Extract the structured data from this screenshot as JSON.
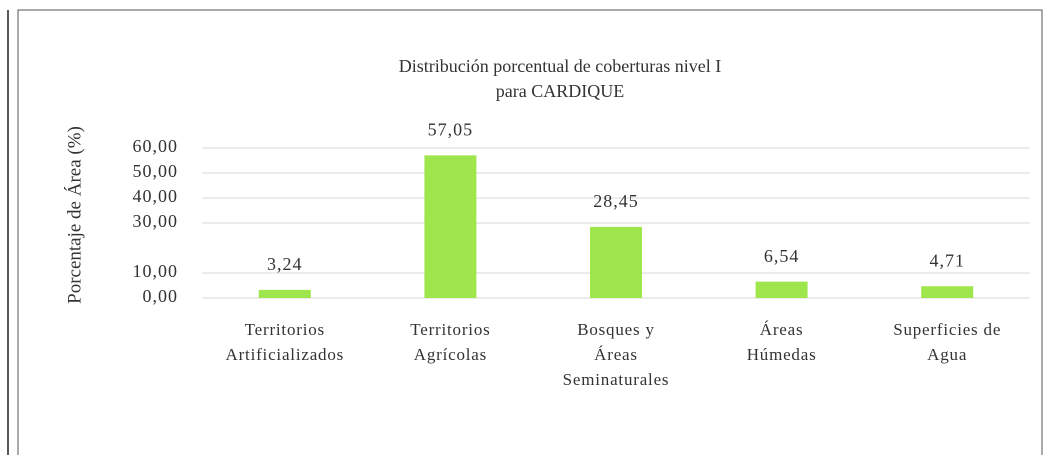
{
  "chart_data": {
    "type": "bar",
    "title": [
      "Distribución porcentual de coberturas nivel I",
      "para CARDIQUE"
    ],
    "y_label": "Porcentaje de Área (%)",
    "categories": [
      [
        "Territorios",
        "Artificializados"
      ],
      [
        "Territorios",
        "Agrícolas"
      ],
      [
        "Bosques y",
        "Áreas",
        "Seminaturales"
      ],
      [
        "Áreas",
        "Húmedas"
      ],
      [
        "Superficies de",
        "Agua"
      ]
    ],
    "values": [
      3.24,
      57.05,
      28.45,
      6.54,
      4.71
    ],
    "value_labels": [
      "3,24",
      "57,05",
      "28,45",
      "6,54",
      "4,71"
    ],
    "color": "#9ee64c",
    "ylim": [
      0,
      60
    ],
    "yticks": [
      {
        "value": 0,
        "label": "0,00"
      },
      {
        "value": 10,
        "label": "10,00"
      },
      {
        "value": 30,
        "label": "30,00"
      },
      {
        "value": 40,
        "label": "40,00"
      },
      {
        "value": 50,
        "label": "50,00"
      },
      {
        "value": 60,
        "label": "60,00"
      }
    ],
    "grid": true
  }
}
